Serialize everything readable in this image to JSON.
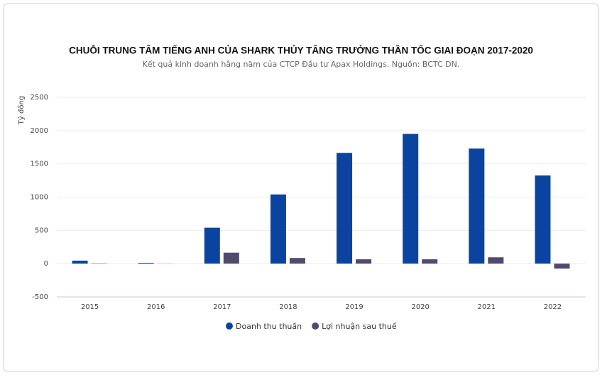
{
  "chart_data": {
    "type": "bar",
    "title": "CHUỖI TRUNG TÂM TIẾNG ANH CỦA SHARK THỦY TĂNG TRƯỞNG THẦN TỐC GIAI ĐOẠN 2017-2020",
    "subtitle": "Kết quả kinh doanh hằng năm của CTCP Đầu tư Apax Holdings. Nguồn: BCTC DN.",
    "y_label": "Tỷ đồng",
    "categories": [
      "2015",
      "2016",
      "2017",
      "2018",
      "2019",
      "2020",
      "2021",
      "2022"
    ],
    "series": [
      {
        "name": "Doanh thu thuần",
        "color": "#0b44a0",
        "values": [
          45,
          12,
          540,
          1040,
          1665,
          1950,
          1730,
          1325
        ]
      },
      {
        "name": "Lợi nhuận sau thuế",
        "color": "#4f4a6e",
        "values": [
          5,
          2,
          165,
          85,
          65,
          65,
          95,
          -75
        ]
      }
    ],
    "ylim": [
      -500,
      2500
    ],
    "yticks": [
      -500,
      0,
      500,
      1000,
      1500,
      2000,
      2500
    ],
    "grid": true
  }
}
